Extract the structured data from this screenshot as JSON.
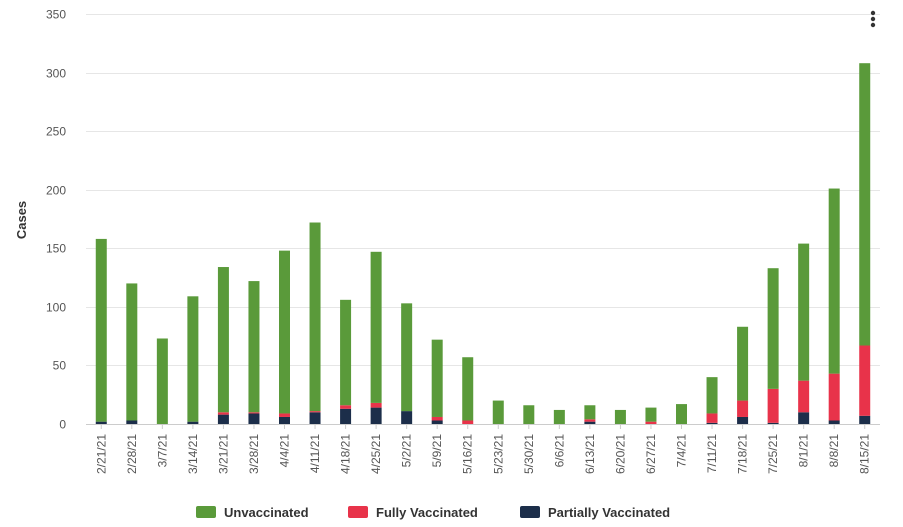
{
  "chart_data": {
    "type": "bar",
    "stacked": true,
    "title": "",
    "xlabel": "",
    "ylabel": "Cases",
    "ylim": [
      0,
      350
    ],
    "yticks": [
      0,
      50,
      100,
      150,
      200,
      250,
      300,
      350
    ],
    "grid": true,
    "legend_position": "bottom",
    "categories": [
      "2/21/21",
      "2/28/21",
      "3/7/21",
      "3/14/21",
      "3/21/21",
      "3/28/21",
      "4/4/21",
      "4/11/21",
      "4/18/21",
      "4/25/21",
      "5/2/21",
      "5/9/21",
      "5/16/21",
      "5/23/21",
      "5/30/21",
      "6/6/21",
      "6/13/21",
      "6/20/21",
      "6/27/21",
      "7/4/21",
      "7/11/21",
      "7/18/21",
      "7/25/21",
      "8/1/21",
      "8/8/21",
      "8/15/21"
    ],
    "series": [
      {
        "name": "Partially Vaccinated",
        "color": "#1c2e4a",
        "values": [
          2,
          3,
          0,
          2,
          8,
          9,
          6,
          10,
          13,
          14,
          11,
          3,
          0,
          0,
          0,
          0,
          2,
          0,
          0,
          0,
          1,
          6,
          1,
          10,
          3,
          7
        ]
      },
      {
        "name": "Fully Vaccinated",
        "color": "#e8334a",
        "values": [
          0,
          0,
          0,
          0,
          2,
          1,
          3,
          1,
          3,
          4,
          0,
          3,
          3,
          0,
          0,
          0,
          2,
          0,
          2,
          0,
          8,
          14,
          29,
          27,
          40,
          60
        ]
      },
      {
        "name": "Unvaccinated",
        "color": "#5a9a3a",
        "values": [
          156,
          117,
          73,
          107,
          124,
          112,
          139,
          161,
          90,
          129,
          92,
          66,
          54,
          20,
          16,
          12,
          12,
          12,
          12,
          17,
          31,
          63,
          103,
          117,
          158,
          241
        ]
      }
    ]
  },
  "legend": {
    "items": [
      {
        "label": "Unvaccinated",
        "color": "#5a9a3a"
      },
      {
        "label": "Fully Vaccinated",
        "color": "#e8334a"
      },
      {
        "label": "Partially Vaccinated",
        "color": "#1c2e4a"
      }
    ]
  },
  "menu": {
    "icon": "kebab-menu-icon"
  }
}
